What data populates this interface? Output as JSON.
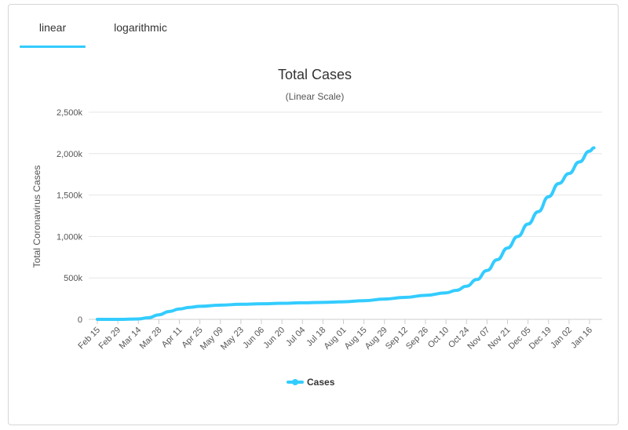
{
  "tabs": [
    {
      "label": "linear",
      "active": true
    },
    {
      "label": "logarithmic",
      "active": false
    }
  ],
  "colors": {
    "series": "#33ccff",
    "tab_accent": "#33ccff",
    "grid": "#e6e6e6"
  },
  "chart_data": {
    "type": "line",
    "title": "Total Cases",
    "subtitle": "(Linear Scale)",
    "xlabel": "",
    "ylabel": "Total Coronavirus Cases",
    "ylim": [
      0,
      2500000
    ],
    "yticks": [
      0,
      500000,
      1000000,
      1500000,
      2000000,
      2500000
    ],
    "ytick_labels": [
      "0",
      "500k",
      "1,000k",
      "1,500k",
      "2,000k",
      "2,500k"
    ],
    "grid": true,
    "legend": "bottom-center",
    "xticks": [
      "Feb 15",
      "Feb 29",
      "Mar 14",
      "Mar 28",
      "Apr 11",
      "Apr 25",
      "May 09",
      "May 23",
      "Jun 06",
      "Jun 20",
      "Jul 04",
      "Jul 18",
      "Aug 01",
      "Aug 15",
      "Aug 29",
      "Sep 12",
      "Sep 26",
      "Oct 10",
      "Oct 24",
      "Nov 07",
      "Nov 21",
      "Dec 05",
      "Dec 19",
      "Jan 02",
      "Jan 16"
    ],
    "x": [
      "Feb 15",
      "Feb 29",
      "Mar 14",
      "Mar 21",
      "Mar 28",
      "Apr 04",
      "Apr 11",
      "Apr 18",
      "Apr 25",
      "May 09",
      "May 23",
      "Jun 06",
      "Jun 20",
      "Jul 04",
      "Jul 18",
      "Aug 01",
      "Aug 15",
      "Aug 29",
      "Sep 12",
      "Sep 26",
      "Oct 10",
      "Oct 17",
      "Oct 24",
      "Oct 31",
      "Nov 07",
      "Nov 14",
      "Nov 21",
      "Nov 28",
      "Dec 05",
      "Dec 12",
      "Dec 19",
      "Dec 26",
      "Jan 02",
      "Jan 09",
      "Jan 16",
      "Jan 19"
    ],
    "series": [
      {
        "name": "Cases",
        "values": [
          16,
          150,
          5000,
          20000,
          55000,
          95000,
          125000,
          145000,
          158000,
          172000,
          182000,
          188000,
          194000,
          200000,
          205000,
          212000,
          225000,
          245000,
          265000,
          290000,
          320000,
          350000,
          400000,
          480000,
          590000,
          720000,
          860000,
          1000000,
          1150000,
          1300000,
          1480000,
          1640000,
          1760000,
          1900000,
          2030000,
          2070000
        ]
      }
    ]
  }
}
